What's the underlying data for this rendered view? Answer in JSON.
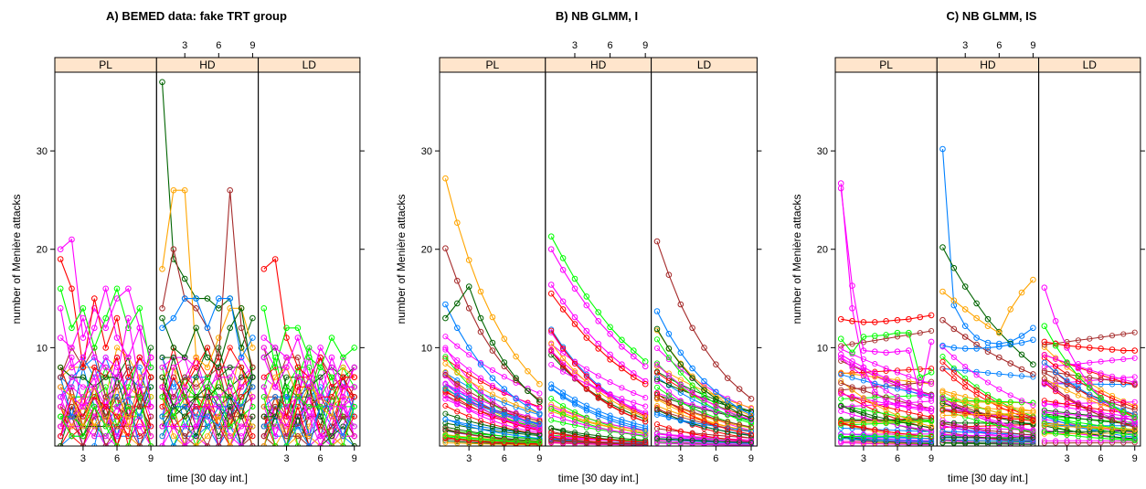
{
  "chart_data": [
    {
      "type": "line",
      "title": "A) BEMED data: fake TRT group",
      "xlabel": "time [30 day int.]",
      "ylabel": "number of Menière attacks",
      "panels": [
        "PL",
        "HD",
        "LD"
      ],
      "x": [
        1,
        2,
        3,
        4,
        5,
        6,
        7,
        8,
        9
      ],
      "xlim": [
        0.5,
        9.5
      ],
      "ylim": [
        0,
        38
      ],
      "x_ticks": [
        3,
        6,
        9
      ],
      "y_ticks": [
        10,
        20,
        30
      ],
      "series_per_panel": 40,
      "highlighted_series": {
        "PL": [
          [
            20,
            21,
            11,
            14,
            12,
            15,
            16,
            12,
            9
          ],
          [
            19,
            16,
            8,
            15,
            10,
            13,
            7,
            9,
            7
          ],
          [
            16,
            12,
            14,
            10,
            13,
            16,
            12,
            14,
            8
          ],
          [
            11,
            10,
            13,
            9,
            8,
            7,
            13,
            6,
            9
          ],
          [
            14,
            8,
            9,
            12,
            16,
            11,
            9,
            12,
            4
          ]
        ],
        "HD": [
          [
            37,
            19,
            17,
            15,
            15,
            14,
            15,
            10,
            13
          ],
          [
            18,
            26,
            26,
            9,
            8,
            11,
            14,
            14,
            10
          ],
          [
            14,
            20,
            15,
            14,
            12,
            9,
            26,
            12,
            8
          ],
          [
            12,
            13,
            15,
            15,
            12,
            15,
            15,
            9,
            11
          ],
          [
            13,
            10,
            9,
            12,
            9,
            8,
            12,
            14,
            7
          ]
        ],
        "LD": [
          [
            18,
            19,
            11,
            8,
            7,
            9,
            6,
            7,
            7
          ],
          [
            14,
            8,
            12,
            12,
            9,
            8,
            11,
            9,
            10
          ],
          [
            11,
            10,
            9,
            7,
            6,
            10,
            8,
            5,
            8
          ],
          [
            9,
            6,
            8,
            11,
            7,
            5,
            9,
            6,
            6
          ]
        ]
      },
      "grid": false,
      "legend": "none"
    },
    {
      "type": "line",
      "title": "B) NB GLMM, I",
      "xlabel": "time [30 day int.]",
      "ylabel": "number of Menière attacks",
      "panels": [
        "PL",
        "HD",
        "LD"
      ],
      "x": [
        1,
        2,
        3,
        4,
        5,
        6,
        7,
        8,
        9
      ],
      "xlim": [
        0.5,
        9.5
      ],
      "ylim": [
        0,
        38
      ],
      "x_ticks": [
        3,
        6,
        9
      ],
      "y_ticks": [
        10,
        20,
        30
      ],
      "series_per_panel": 40,
      "highlighted_series": {
        "PL": [
          [
            27.2,
            22.7,
            18.9,
            15.7,
            13.1,
            10.9,
            9.1,
            7.6,
            6.3
          ],
          [
            20.1,
            16.8,
            14.0,
            11.6,
            9.7,
            8.1,
            6.7,
            5.6,
            4.7
          ],
          [
            14.4,
            12.0,
            10.0,
            8.3,
            6.9,
            5.8,
            4.8,
            4.0,
            3.3
          ],
          [
            13.0,
            14.5,
            16.2,
            13.0,
            10.5,
            8.5,
            6.9,
            5.6,
            4.5
          ]
        ],
        "HD": [
          [
            21.3,
            19.1,
            17.0,
            15.2,
            13.6,
            12.1,
            10.8,
            9.7,
            8.6
          ],
          [
            20.0,
            17.9,
            16.0,
            14.3,
            12.7,
            11.4,
            10.1,
            9.1,
            8.1
          ],
          [
            16.4,
            14.7,
            13.1,
            11.7,
            10.4,
            9.3,
            8.3,
            7.4,
            6.6
          ],
          [
            15.5,
            13.9,
            12.4,
            11.0,
            9.9,
            8.8,
            7.9,
            7.0,
            6.3
          ]
        ],
        "LD": [
          [
            20.8,
            17.4,
            14.4,
            12.0,
            10.0,
            8.3,
            6.9,
            5.8,
            4.8
          ],
          [
            13.7,
            11.4,
            9.5,
            7.9,
            6.6,
            5.5,
            4.6,
            3.8,
            3.2
          ],
          [
            11.9,
            9.9,
            8.3,
            6.9,
            5.7,
            4.8,
            4.0,
            3.3,
            2.8
          ]
        ]
      },
      "grid": false,
      "legend": "none"
    },
    {
      "type": "line",
      "title": "C) NB GLMM, IS",
      "xlabel": "time [30 day int.]",
      "ylabel": "number of Menière attacks",
      "panels": [
        "PL",
        "HD",
        "LD"
      ],
      "x": [
        1,
        2,
        3,
        4,
        5,
        6,
        7,
        8,
        9
      ],
      "xlim": [
        0.5,
        9.5
      ],
      "ylim": [
        0,
        38
      ],
      "x_ticks": [
        3,
        6,
        9
      ],
      "y_ticks": [
        10,
        20,
        30
      ],
      "series_per_panel": 40,
      "highlighted_series": {
        "PL": [
          [
            26.7,
            14.0,
            8.0,
            5.5,
            4.6,
            4.2,
            4.0,
            3.9,
            3.8
          ],
          [
            26.2,
            16.3,
            9.7,
            9.6,
            9.5,
            9.6,
            9.7,
            5.1,
            10.6
          ],
          [
            12.9,
            12.7,
            12.6,
            12.6,
            12.7,
            12.8,
            12.9,
            13.1,
            13.3
          ],
          [
            10.9,
            9.5,
            11.1,
            11.2,
            11.3,
            11.5,
            11.5,
            7.0,
            7.5
          ],
          [
            9.3,
            8.6,
            8.0,
            7.4,
            6.9,
            6.4,
            5.9,
            5.5,
            5.1
          ]
        ],
        "HD": [
          [
            30.2,
            14.3,
            12.2,
            11.0,
            10.5,
            10.4,
            10.6,
            11.2,
            12.0
          ],
          [
            20.2,
            18.1,
            16.2,
            14.5,
            12.9,
            11.6,
            10.4,
            9.3,
            8.3
          ],
          [
            15.7,
            14.8,
            13.9,
            13.0,
            12.2,
            11.5,
            13.9,
            15.6,
            16.9
          ],
          [
            12.8,
            11.9,
            11.1,
            10.3,
            9.6,
            9.0,
            8.4,
            7.8,
            7.3
          ],
          [
            10.2,
            10.0,
            9.9,
            9.9,
            10.0,
            10.1,
            10.3,
            10.5,
            10.8
          ]
        ],
        "LD": [
          [
            16.1,
            12.7,
            10.0,
            7.9,
            6.2,
            4.9,
            3.9,
            3.1,
            2.4
          ],
          [
            10.6,
            10.4,
            10.2,
            10.1,
            10.0,
            9.9,
            9.8,
            9.7,
            9.7
          ],
          [
            12.2,
            10.2,
            8.5,
            7.1,
            5.9,
            4.9,
            4.1,
            3.4,
            2.9
          ]
        ]
      },
      "grid": false,
      "legend": "none"
    }
  ]
}
